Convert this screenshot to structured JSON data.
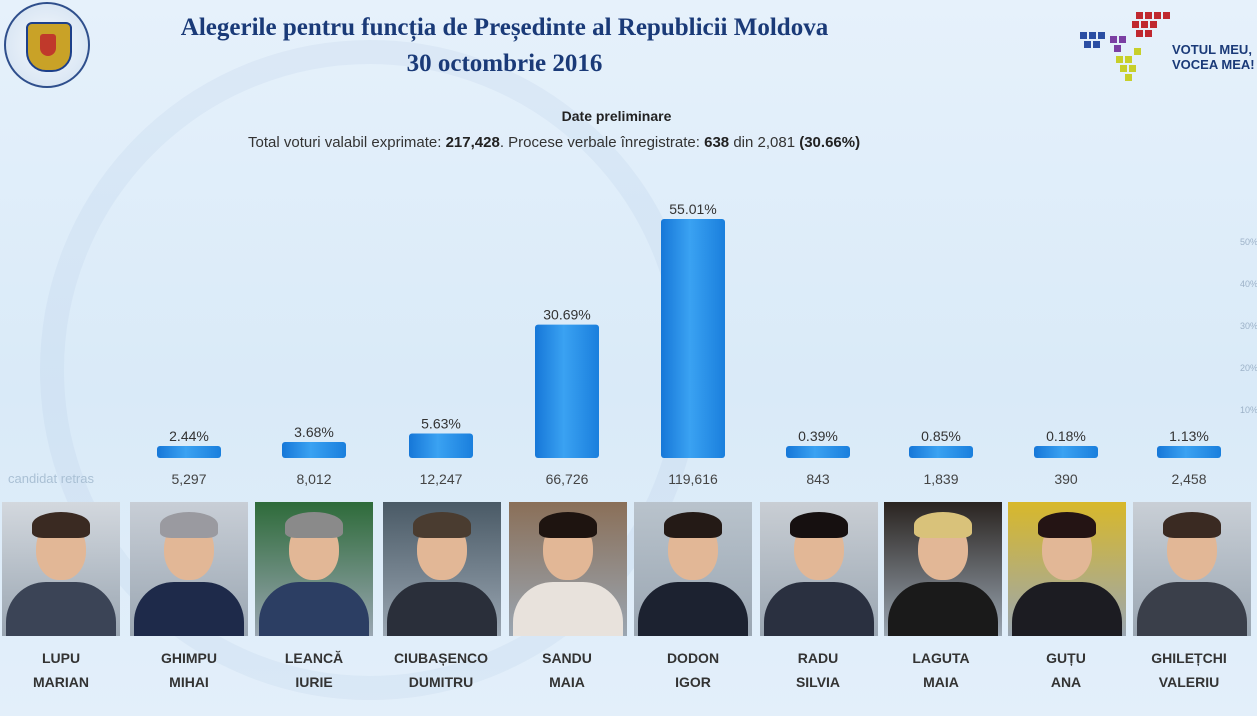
{
  "header": {
    "title_line1": "Alegerile pentru funcția de Președinte al Republicii Moldova",
    "title_line2": "30 octombrie 2016",
    "subtitle": "Date preliminare",
    "totals_prefix": "Total voturi valabil exprimate:",
    "totals_valid": "217,428",
    "totals_middle": ". Procese verbale înregistrate:",
    "totals_registered": "638",
    "totals_din": "din 2,081",
    "totals_percent": "(30.66%)"
  },
  "logo": {
    "line1": "VOTUL MEU,",
    "line2": "VOCEA MEA!",
    "seal_icon": "cec-seal-icon"
  },
  "chart_data": {
    "type": "bar",
    "title": "Alegerile pentru funcția de Președinte al Republicii Moldova",
    "categories": [
      "LUPU MARIAN",
      "GHIMPU MIHAI",
      "LEANCĂ IURIE",
      "CIUBAȘENCO DUMITRU",
      "SANDU MAIA",
      "DODON IGOR",
      "RADU SILVIA",
      "LAGUTA MAIA",
      "GUȚU ANA",
      "GHILEȚCHI VALERIU"
    ],
    "values": [
      null,
      2.44,
      3.68,
      5.63,
      30.69,
      55.01,
      0.39,
      0.85,
      0.18,
      1.13
    ],
    "value_labels": [
      "",
      "2.44%",
      "3.68%",
      "5.63%",
      "30.69%",
      "55.01%",
      "0.39%",
      "0.85%",
      "0.18%",
      "1.13%"
    ],
    "votes": [
      "candidat retras",
      "5,297",
      "8,012",
      "12,247",
      "66,726",
      "119,616",
      "843",
      "1,839",
      "390",
      "2,458"
    ],
    "ylim": [
      0,
      60
    ],
    "y_ticks": [
      "50%",
      "40%",
      "30%",
      "20%",
      "10%"
    ],
    "bar_color": "#1f8fe6",
    "grid": false
  },
  "candidates": [
    {
      "first": "LUPU",
      "second": "MARIAN",
      "photo_icon": "candidate-photo-icon"
    },
    {
      "first": "GHIMPU",
      "second": "MIHAI",
      "photo_icon": "candidate-photo-icon"
    },
    {
      "first": "LEANCĂ",
      "second": "IURIE",
      "photo_icon": "candidate-photo-icon"
    },
    {
      "first": "CIUBAȘENCO",
      "second": "DUMITRU",
      "photo_icon": "candidate-photo-icon"
    },
    {
      "first": "SANDU",
      "second": "MAIA",
      "photo_icon": "candidate-photo-icon"
    },
    {
      "first": "DODON",
      "second": "IGOR",
      "photo_icon": "candidate-photo-icon"
    },
    {
      "first": "RADU",
      "second": "SILVIA",
      "photo_icon": "candidate-photo-icon"
    },
    {
      "first": "LAGUTA",
      "second": "MAIA",
      "photo_icon": "candidate-photo-icon"
    },
    {
      "first": "GUȚU",
      "second": "ANA",
      "photo_icon": "candidate-photo-icon"
    },
    {
      "first": "GHILEȚCHI",
      "second": "VALERIU",
      "photo_icon": "candidate-photo-icon"
    }
  ]
}
